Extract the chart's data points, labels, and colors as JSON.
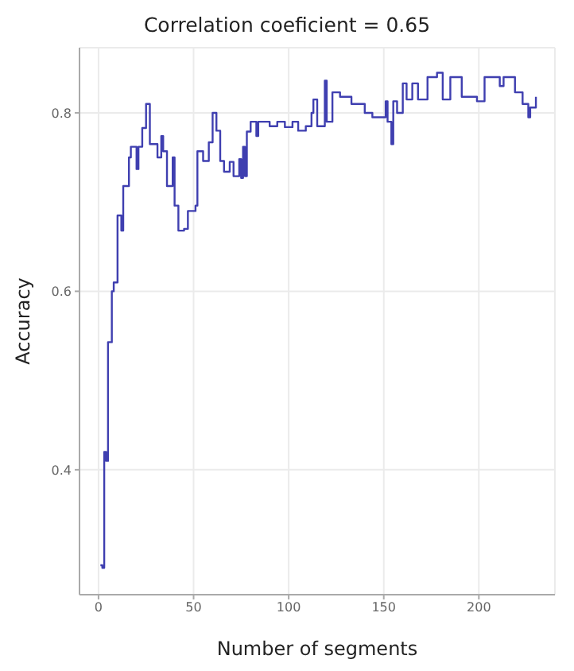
{
  "chart_data": {
    "type": "step",
    "title": "Correlation coeficient = 0.65",
    "xlabel": "Number of segments",
    "ylabel": "Accuracy",
    "x": [
      1,
      2,
      3,
      4,
      5,
      7,
      8,
      10,
      12,
      13,
      16,
      17,
      20,
      21,
      23,
      25,
      27,
      31,
      33,
      34,
      36,
      39,
      40,
      42,
      45,
      47,
      51,
      52,
      55,
      58,
      60,
      62,
      64,
      66,
      69,
      71,
      74,
      75,
      76,
      77,
      78,
      80,
      83,
      84,
      90,
      94,
      98,
      102,
      105,
      109,
      112,
      113,
      115,
      119,
      120,
      123,
      127,
      133,
      140,
      144,
      151,
      152,
      154,
      155,
      157,
      160,
      162,
      165,
      168,
      173,
      178,
      181,
      185,
      191,
      199,
      203,
      211,
      213,
      219,
      223,
      226,
      227,
      230
    ],
    "series": [
      {
        "color": "#3f3fb0",
        "values": [
          0.293,
          0.29,
          0.42,
          0.41,
          0.543,
          0.6,
          0.61,
          0.685,
          0.668,
          0.718,
          0.75,
          0.762,
          0.737,
          0.762,
          0.783,
          0.81,
          0.765,
          0.75,
          0.774,
          0.757,
          0.718,
          0.75,
          0.696,
          0.668,
          0.67,
          0.69,
          0.696,
          0.757,
          0.746,
          0.767,
          0.8,
          0.78,
          0.746,
          0.734,
          0.745,
          0.729,
          0.748,
          0.727,
          0.762,
          0.729,
          0.779,
          0.79,
          0.774,
          0.79,
          0.785,
          0.79,
          0.784,
          0.79,
          0.78,
          0.785,
          0.8,
          0.815,
          0.785,
          0.836,
          0.79,
          0.823,
          0.818,
          0.81,
          0.8,
          0.795,
          0.813,
          0.79,
          0.765,
          0.813,
          0.8,
          0.833,
          0.815,
          0.833,
          0.815,
          0.84,
          0.845,
          0.815,
          0.84,
          0.818,
          0.813,
          0.84,
          0.83,
          0.84,
          0.823,
          0.81,
          0.795,
          0.806,
          0.818
        ]
      }
    ],
    "xlim": [
      -10,
      240
    ],
    "xticks": [
      0,
      50,
      100,
      150,
      200
    ],
    "ylim": [
      0.26,
      0.873
    ],
    "yticks": [
      0.4,
      0.6,
      0.8
    ],
    "grid": true,
    "marker": "none",
    "line_style": "solid"
  }
}
